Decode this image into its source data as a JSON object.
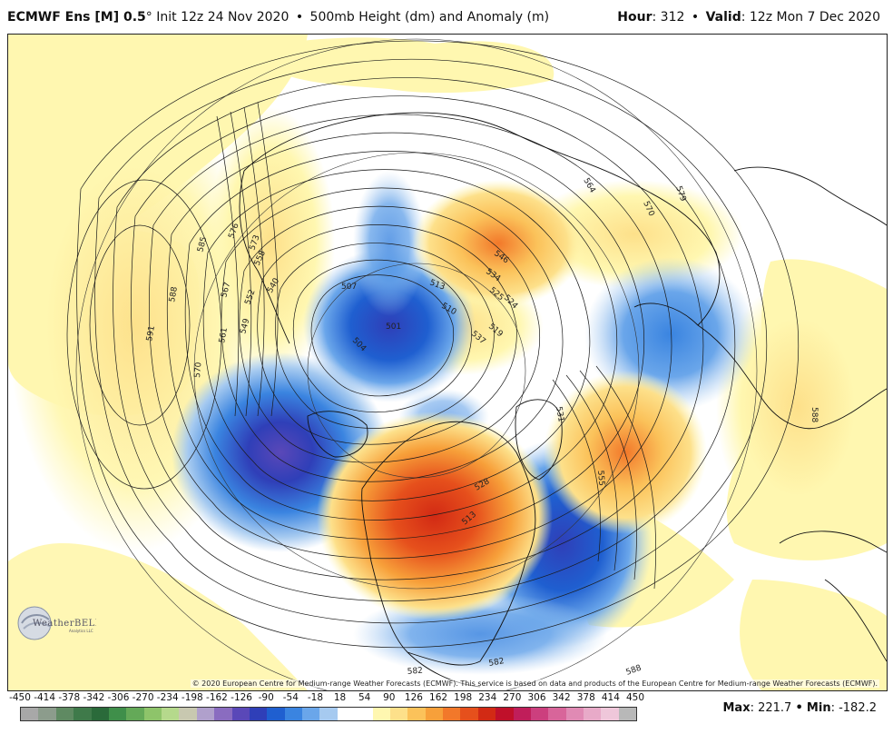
{
  "header": {
    "model": "ECMWF Ens [M] 0.5",
    "degree": "°",
    "init": "Init 12z 24 Nov 2020",
    "bullet": "•",
    "field": "500mb Height (dm) and Anomaly (m)",
    "hour_label": "Hour",
    "hour_value": ": 312",
    "valid_label": "Valid",
    "valid_value": ": 12z Mon 7 Dec 2020"
  },
  "copyright": "© 2020 European Centre for Medium-range Weather Forecasts (ECMWF). This service is based on data and products of the European Centre for Medium-range Weather Forecasts (ECMWF).",
  "logo": {
    "name": "WeatherBELL",
    "sub": "Analytics LLC"
  },
  "colorbar": {
    "tick_labels": [
      "-450",
      "-414",
      "-378",
      "-342",
      "-306",
      "-270",
      "-234",
      "-198",
      "-162",
      "-126",
      "-90",
      "-54",
      "-18",
      "18",
      "54",
      "90",
      "126",
      "162",
      "198",
      "234",
      "270",
      "306",
      "342",
      "378",
      "414",
      "450"
    ],
    "colors": [
      "#a8a8a8",
      "#8c9c8c",
      "#5f8a62",
      "#3f7a4a",
      "#2a6a3a",
      "#3f8f4a",
      "#64a958",
      "#8ec46a",
      "#b5d98c",
      "#c8c8b0",
      "#b0a0cc",
      "#8a6cc0",
      "#5a48b8",
      "#2f3fb8",
      "#1f5fd0",
      "#3a84e0",
      "#6aa6ea",
      "#a6caf0",
      "#ffffff",
      "#ffffff",
      "#fff7b0",
      "#fde08a",
      "#fbc25a",
      "#f7a03a",
      "#f2782a",
      "#e6501c",
      "#d22a14",
      "#c0102a",
      "#c01e5a",
      "#cc3f7e",
      "#d8659a",
      "#e08ab4",
      "#e8aac8",
      "#efc7da",
      "#b8b8b8"
    ],
    "max_label": "Max",
    "max_value": ": 221.7",
    "min_label": "Min",
    "min_value": ": -182.2"
  },
  "contour_labels": [
    "591",
    "588",
    "585",
    "576",
    "573",
    "570",
    "567",
    "561",
    "558",
    "552",
    "549",
    "540",
    "507",
    "504",
    "501",
    "513",
    "510",
    "519",
    "524",
    "546",
    "534",
    "528",
    "531",
    "555",
    "582",
    "588",
    "579",
    "564",
    "588",
    "525",
    "513",
    "570",
    "537",
    "582"
  ],
  "anomaly_colors": {
    "pale_yellow": "#fff7b0",
    "yellow": "#fde08a",
    "orange": "#f7a03a",
    "red_orange": "#e6501c",
    "red": "#d22a14",
    "pale_blue": "#a6caf0",
    "blue": "#3a84e0",
    "deep_blue": "#1f5fd0",
    "navy": "#2f3fb8",
    "purple": "#5a48b8"
  }
}
